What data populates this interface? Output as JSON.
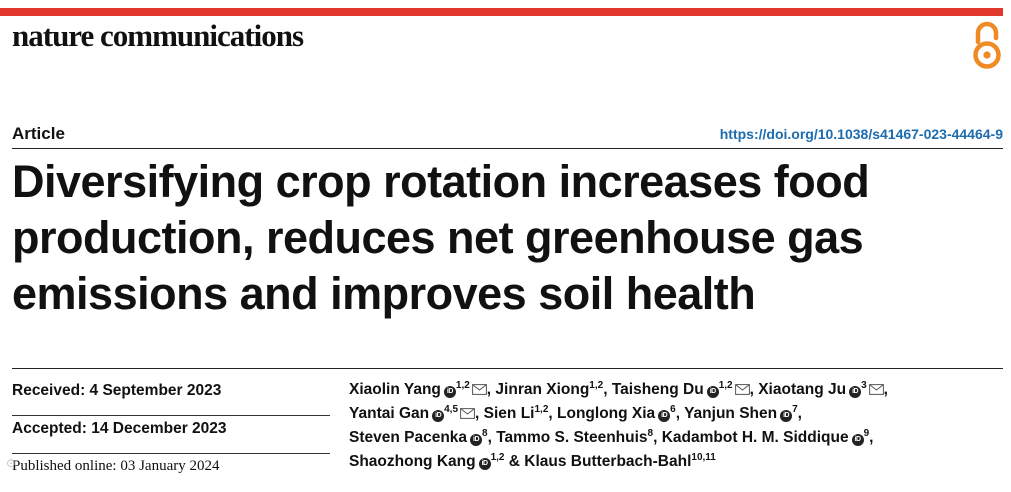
{
  "journal": {
    "name": "nature communications"
  },
  "header": {
    "article_type": "Article",
    "doi": "https://doi.org/10.1038/s41467-023-44464-9"
  },
  "title": {
    "line1": "Diversifying crop rotation increases food",
    "line2": "production, reduces net greenhouse gas",
    "line3": "emissions and improves soil health"
  },
  "dates": {
    "received": "Received: 4 September 2023",
    "accepted": "Accepted: 14 December 2023",
    "published": "Published online: 03 January 2024"
  },
  "authors": [
    {
      "name": "Xiaolin Yang",
      "orcid": true,
      "sup": "1,2",
      "email": true
    },
    {
      "name": "Jinran Xiong",
      "orcid": false,
      "sup": "1,2",
      "email": false
    },
    {
      "name": "Taisheng Du",
      "orcid": true,
      "sup": "1,2",
      "email": true
    },
    {
      "name": "Xiaotang Ju",
      "orcid": true,
      "sup": "3",
      "email": true
    },
    {
      "name": "Yantai Gan",
      "orcid": true,
      "sup": "4,5",
      "email": true
    },
    {
      "name": "Sien Li",
      "orcid": false,
      "sup": "1,2",
      "email": false
    },
    {
      "name": "Longlong Xia",
      "orcid": true,
      "sup": "6",
      "email": false
    },
    {
      "name": "Yanjun Shen",
      "orcid": true,
      "sup": "7",
      "email": false
    },
    {
      "name": "Steven Pacenka",
      "orcid": true,
      "sup": "8",
      "email": false
    },
    {
      "name": "Tammo S. Steenhuis",
      "orcid": false,
      "sup": "8",
      "email": false
    },
    {
      "name": "Kadambot H. M. Siddique",
      "orcid": true,
      "sup": "9",
      "email": false
    },
    {
      "name": "Shaozhong Kang",
      "orcid": true,
      "sup": "1,2",
      "email": false
    },
    {
      "name": "Klaus Butterbach-Bahl",
      "orcid": false,
      "sup": "10,11",
      "email": false
    }
  ],
  "author_lines": [
    [
      0,
      1,
      2,
      3
    ],
    [
      4,
      5,
      6,
      7
    ],
    [
      8,
      9,
      10
    ],
    [
      11,
      12
    ]
  ],
  "icons": {
    "orcid": "orcid-icon",
    "email": "email-icon",
    "open_access": "open-access-icon"
  },
  "colors": {
    "accent_bar": "#e0362c",
    "link": "#1c6cae",
    "open_access": "#f08a24"
  }
}
